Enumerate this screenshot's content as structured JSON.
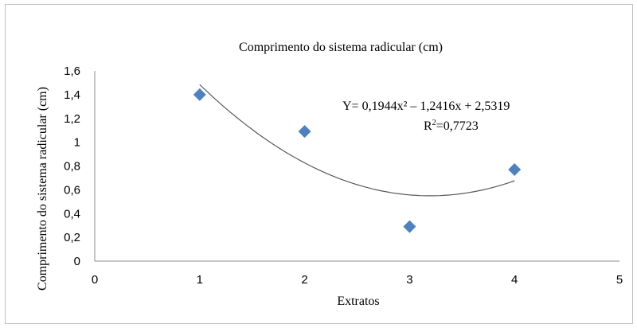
{
  "chart_data": {
    "type": "scatter",
    "title": "Comprimento do sistema radicular (cm)",
    "xlabel": "Extratos",
    "ylabel": "Comprimento do sistema radicular (cm)",
    "xlim": [
      0,
      5
    ],
    "ylim": [
      0,
      1.6
    ],
    "x_ticks": [
      "0",
      "1",
      "2",
      "3",
      "4",
      "5"
    ],
    "y_ticks": [
      "0",
      "0,2",
      "0,4",
      "0,6",
      "0,8",
      "1",
      "1,2",
      "1,4",
      "1,6"
    ],
    "grid": false,
    "legend": "none",
    "marker": "diamond",
    "marker_color": "#4f81bd",
    "trendline_color": "#595959",
    "series": [
      {
        "x": [
          1,
          2,
          3,
          4
        ],
        "values": [
          1.4,
          1.09,
          0.29,
          0.77
        ]
      }
    ],
    "trendline": {
      "type": "polynomial",
      "coefficients": [
        0.1944,
        -1.2416,
        2.5319
      ],
      "x_range": [
        1,
        4
      ]
    },
    "annotations": {
      "equation": "Y= 0,1944x² – 1,2416x + 2,5319",
      "r2_prefix": "R",
      "r2_sup": "2",
      "r2_value": "=0,7723"
    }
  }
}
